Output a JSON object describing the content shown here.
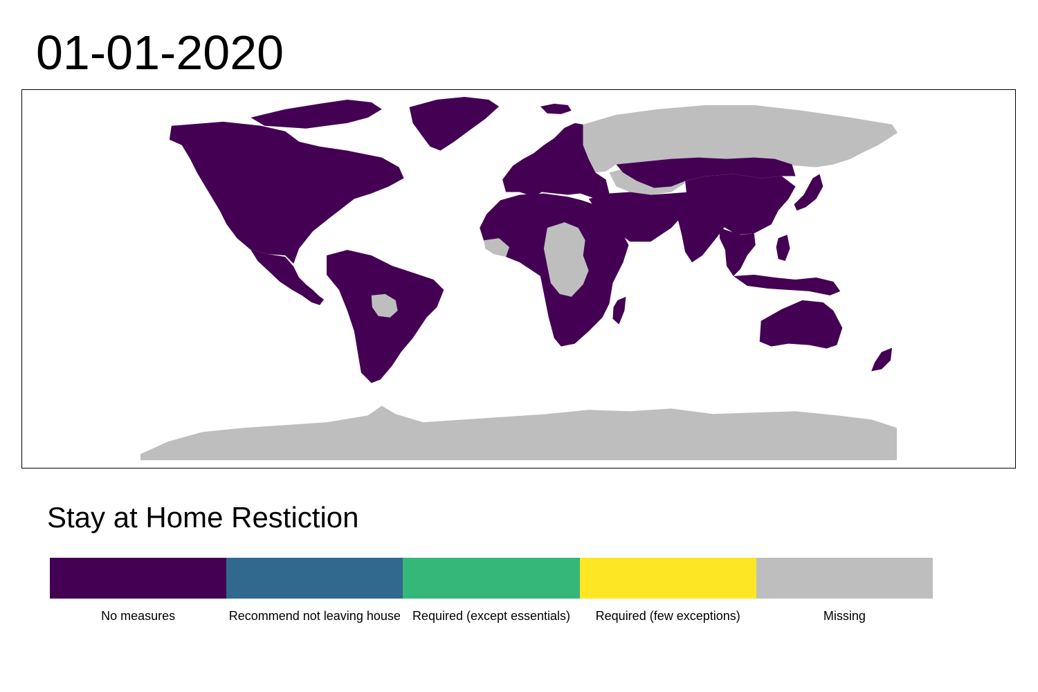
{
  "title": "01-01-2020",
  "legend": {
    "title": "Stay at Home Restiction",
    "items": [
      {
        "label": "No measures",
        "color": "#440154"
      },
      {
        "label": "Recommend not leaving house",
        "color": "#31688E"
      },
      {
        "label": "Required (except essentials)",
        "color": "#35B779"
      },
      {
        "label": "Required (few exceptions)",
        "color": "#FDE725"
      },
      {
        "label": "Missing",
        "color": "#BEBEBE"
      }
    ]
  },
  "map": {
    "projection": "equirectangular",
    "levels": {
      "north-america": "No measures",
      "central-america": "No measures",
      "greenland": "No measures",
      "south-america": "No measures",
      "bolivia": "Missing",
      "europe": "No measures",
      "iceland": "No measures",
      "russia": "Missing",
      "kazakhstan": "Missing",
      "africa": "No measures",
      "central-africa": "Missing",
      "west-africa-coast": "Missing",
      "madagascar": "No measures",
      "middle-east": "No measures",
      "south-asia": "No measures",
      "china": "No measures",
      "mongolia": "No measures",
      "japan": "No measures",
      "southeast-asia": "No measures",
      "indonesia": "No measures",
      "australia": "No measures",
      "new-zealand": "No measures",
      "antarctica": "Missing"
    }
  }
}
